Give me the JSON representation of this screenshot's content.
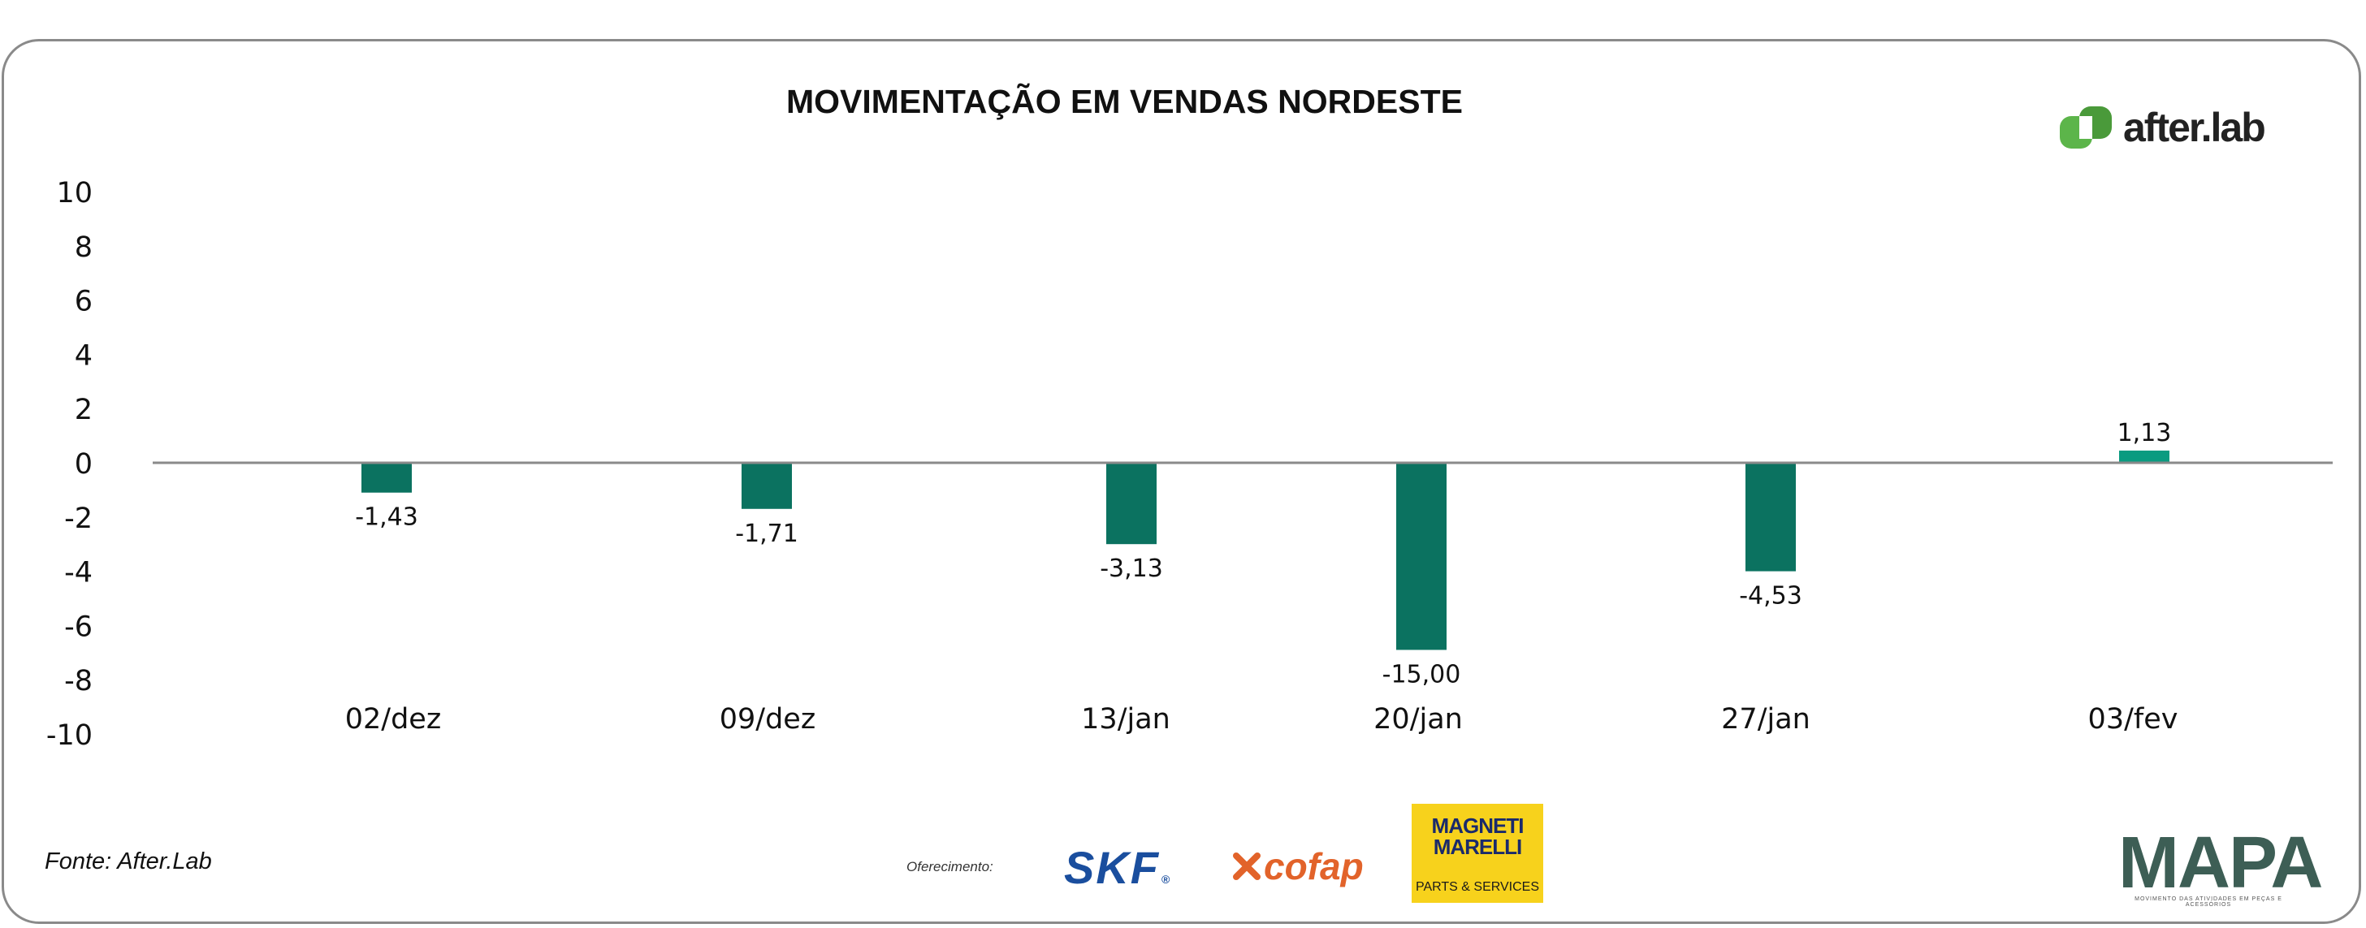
{
  "title": "MOVIMENTAÇÃO EM VENDAS NORDESTE",
  "brand_logo": {
    "text": "after.lab",
    "icon": "afterlab-green-logo-icon",
    "color": "#5cb54a"
  },
  "source": "Fonte: After.Lab",
  "sponsor_label": "Oferecimento:",
  "sponsors": {
    "skf": "SKF",
    "cofap": "cofap",
    "magneti_marelli": "MAGNETI MARELLI",
    "magneti_sub": "PARTS & SERVICES"
  },
  "mapa": {
    "text": "MAPA",
    "subtitle": "MOVIMENTO DAS ATIVIDADES EM PEÇAS E ACESSÓRIOS"
  },
  "chart_data": {
    "type": "bar",
    "title": "MOVIMENTAÇÃO EM VENDAS NORDESTE",
    "categories": [
      "02/dez",
      "09/dez",
      "13/jan",
      "20/jan",
      "27/jan",
      "03/fev"
    ],
    "values": [
      -1.43,
      -1.71,
      -3.13,
      -15.0,
      -4.53,
      1.13
    ],
    "value_labels": [
      "-1,43",
      "-1,71",
      "-3,13",
      "-15,00",
      "-4,53",
      "1,13"
    ],
    "bar_heights_shown": [
      -1.1,
      -1.7,
      -3.0,
      -6.9,
      -4.0,
      0.45
    ],
    "yticks": [
      10,
      8,
      6,
      4,
      2,
      0,
      -2,
      -4,
      -6,
      -8,
      -10
    ],
    "ylim": [
      -10,
      10
    ],
    "xlabel": "",
    "ylabel": "",
    "grid": false,
    "legend": "none",
    "colors": {
      "negative": "#0b7260",
      "positive": "#0a9b80",
      "axis": "#8a8a8a"
    }
  }
}
